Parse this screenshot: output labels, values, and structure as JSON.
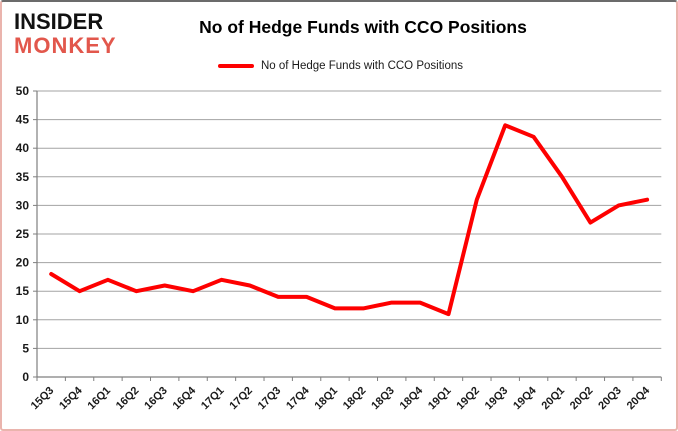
{
  "logo": {
    "line1": "INSIDER",
    "line2": "MONKEY"
  },
  "title": "No of Hedge Funds with CCO Positions",
  "legend": {
    "label": "No of Hedge Funds with CCO Positions",
    "swatch_color": "#fe0000"
  },
  "colors": {
    "line": "#fe0000",
    "grid": "#a3a3a3",
    "axis": "#7f7f7f",
    "text": "#1a1a1a",
    "logo_primary": "#111111",
    "logo_accent": "#e2574c",
    "border": "#eab4ad"
  },
  "chart_data": {
    "type": "line",
    "title": "No of Hedge Funds with CCO Positions",
    "xlabel": "",
    "ylabel": "",
    "categories": [
      "15Q3",
      "15Q4",
      "16Q1",
      "16Q2",
      "16Q3",
      "16Q4",
      "17Q1",
      "17Q2",
      "17Q3",
      "17Q4",
      "18Q1",
      "18Q2",
      "18Q3",
      "18Q4",
      "19Q1",
      "19Q2",
      "19Q3",
      "19Q4",
      "20Q1",
      "20Q2",
      "20Q3",
      "20Q4"
    ],
    "series": [
      {
        "name": "No of Hedge Funds with CCO Positions",
        "color": "#fe0000",
        "values": [
          18,
          15,
          17,
          15,
          16,
          15,
          17,
          16,
          14,
          14,
          12,
          12,
          13,
          13,
          11,
          31,
          44,
          42,
          35,
          27,
          30,
          31
        ]
      }
    ],
    "ylim": [
      0,
      50
    ],
    "ytick_step": 5,
    "yticks": [
      0,
      5,
      10,
      15,
      20,
      25,
      30,
      35,
      40,
      45,
      50
    ],
    "grid": "horizontal",
    "legend_position": "top-center"
  }
}
